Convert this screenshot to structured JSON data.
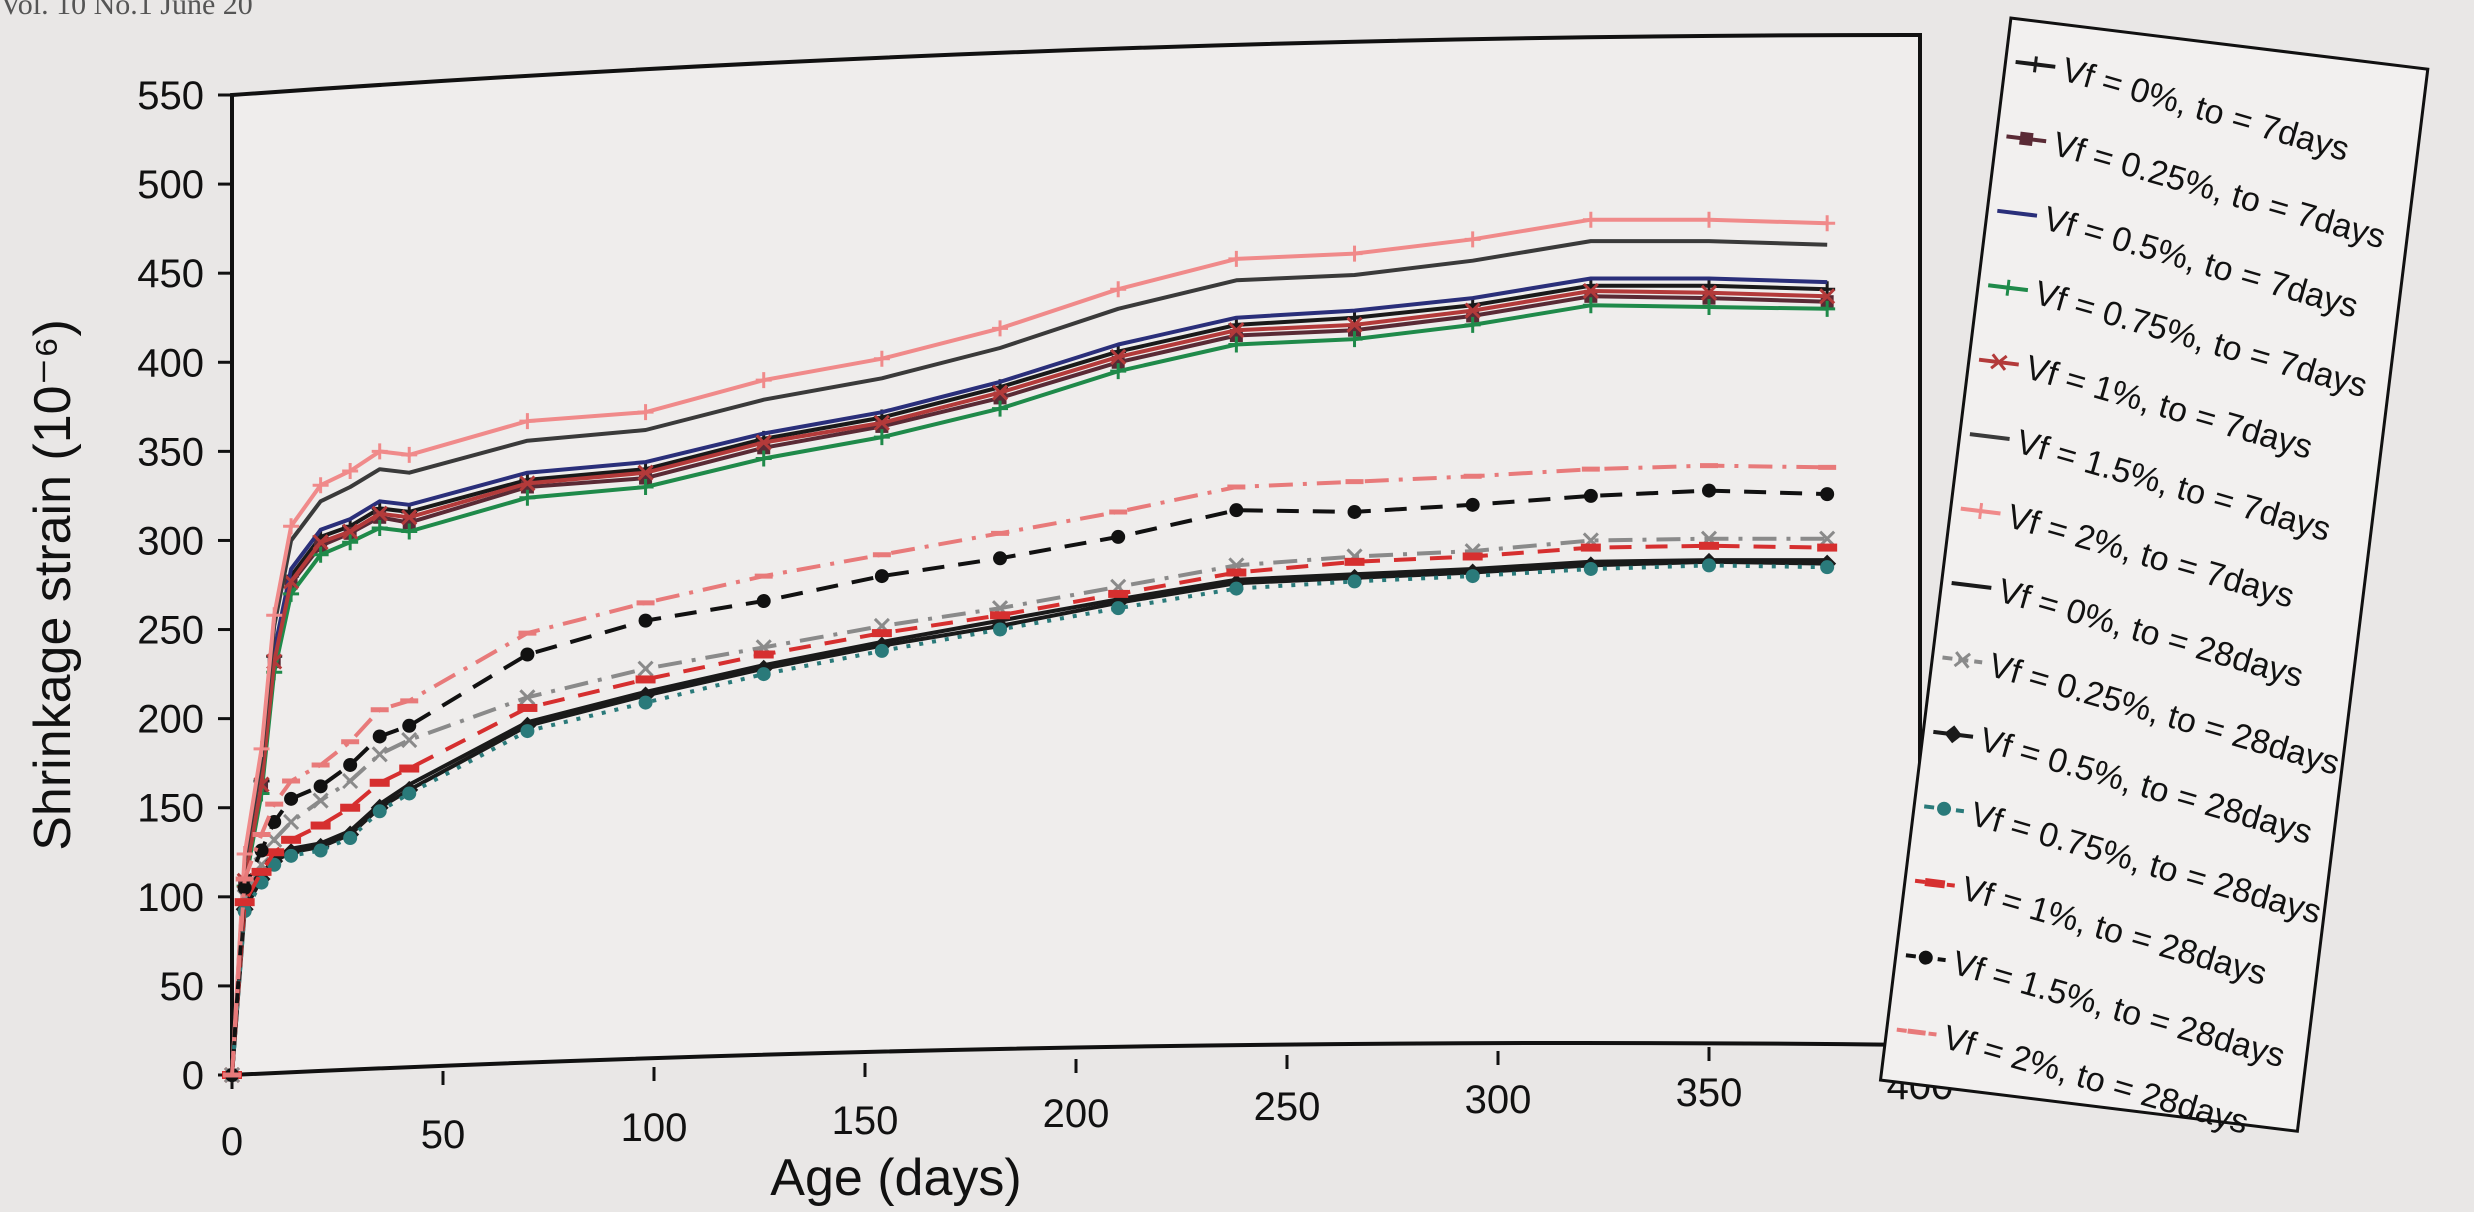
{
  "page": {
    "header_text": "Vol. 10 No.1  June 20"
  },
  "chart_data": {
    "type": "line",
    "title": "",
    "xlabel": "Age (days)",
    "ylabel": "Shrinkage strain (10⁻⁶)",
    "xlim": [
      0,
      400
    ],
    "ylim": [
      0,
      550
    ],
    "xticks": [
      0,
      50,
      100,
      150,
      200,
      250,
      300,
      350,
      400
    ],
    "yticks": [
      0,
      50,
      100,
      150,
      200,
      250,
      300,
      350,
      400,
      450,
      500,
      550
    ],
    "grid": false,
    "legend_position": "right",
    "x": [
      0,
      3,
      7,
      10,
      14,
      21,
      28,
      35,
      42,
      70,
      98,
      126,
      154,
      182,
      210,
      238,
      266,
      294,
      322,
      350,
      378
    ],
    "series": [
      {
        "name": "Vf = 0%, to = 7days",
        "color": "#1a1a1a",
        "dash": "solid",
        "marker": "plus",
        "values": [
          0,
          110,
          165,
          235,
          280,
          302,
          308,
          318,
          316,
          334,
          340,
          357,
          369,
          386,
          406,
          421,
          425,
          432,
          443,
          443,
          441
        ]
      },
      {
        "name": "Vf = 0.25%, to = 7days",
        "color": "#5a2a35",
        "dash": "solid",
        "marker": "square",
        "values": [
          0,
          108,
          162,
          232,
          276,
          297,
          304,
          313,
          310,
          330,
          335,
          352,
          364,
          380,
          400,
          415,
          418,
          426,
          437,
          436,
          434
        ]
      },
      {
        "name": "Vf = 0.5%, to = 7days",
        "color": "#2a2f7a",
        "dash": "solid",
        "marker": "none",
        "values": [
          0,
          112,
          168,
          238,
          284,
          306,
          312,
          322,
          320,
          338,
          344,
          360,
          372,
          389,
          410,
          425,
          429,
          436,
          447,
          447,
          445
        ]
      },
      {
        "name": "Vf = 0.75%, to = 7days",
        "color": "#1f8a4a",
        "dash": "solid",
        "marker": "plus",
        "values": [
          0,
          106,
          158,
          226,
          270,
          292,
          299,
          307,
          305,
          324,
          330,
          346,
          358,
          374,
          395,
          410,
          413,
          421,
          432,
          431,
          430
        ]
      },
      {
        "name": "Vf = 1%, to = 7days",
        "color": "#b33a3a",
        "dash": "solid",
        "marker": "cross",
        "values": [
          0,
          109,
          163,
          232,
          277,
          299,
          305,
          315,
          313,
          332,
          338,
          355,
          366,
          383,
          403,
          418,
          421,
          429,
          440,
          439,
          437
        ]
      },
      {
        "name": "Vf = 1.5%, to = 7days",
        "color": "#3a3a3a",
        "dash": "solid",
        "marker": "none",
        "values": [
          0,
          120,
          178,
          252,
          300,
          322,
          330,
          340,
          338,
          356,
          362,
          379,
          391,
          408,
          430,
          446,
          449,
          457,
          468,
          468,
          466
        ]
      },
      {
        "name": "Vf = 2%, to = 7days",
        "color": "#f08a8a",
        "dash": "solid",
        "marker": "plus",
        "values": [
          0,
          124,
          183,
          258,
          308,
          331,
          339,
          350,
          348,
          367,
          372,
          390,
          402,
          419,
          441,
          458,
          461,
          469,
          480,
          480,
          478
        ]
      },
      {
        "name": "Vf = 0%, to = 28days",
        "color": "#1a1a1a",
        "dash": "solid",
        "marker": "none",
        "values": [
          0,
          95,
          112,
          122,
          127,
          130,
          137,
          152,
          163,
          198,
          215,
          230,
          243,
          255,
          267,
          278,
          281,
          284,
          288,
          289,
          289
        ]
      },
      {
        "name": "Vf = 0.25%, to = 28days",
        "color": "#8a8a8a",
        "dash": "dashdot",
        "marker": "cross",
        "values": [
          0,
          100,
          118,
          132,
          142,
          154,
          165,
          180,
          188,
          212,
          228,
          240,
          252,
          262,
          274,
          286,
          291,
          294,
          300,
          301,
          301
        ]
      },
      {
        "name": "Vf = 0.5%, to = 28days",
        "color": "#1a1a1a",
        "dash": "solid",
        "marker": "diamond",
        "values": [
          0,
          93,
          110,
          120,
          125,
          128,
          135,
          150,
          160,
          196,
          213,
          228,
          241,
          252,
          265,
          276,
          279,
          282,
          286,
          288,
          287
        ]
      },
      {
        "name": "Vf = 0.75%, to = 28days",
        "color": "#2a7a7a",
        "dash": "dotted",
        "marker": "dot",
        "values": [
          0,
          92,
          108,
          118,
          123,
          126,
          133,
          148,
          158,
          193,
          209,
          225,
          238,
          250,
          262,
          273,
          277,
          280,
          284,
          286,
          285
        ]
      },
      {
        "name": "Vf = 1%, to = 28days",
        "color": "#d62f2f",
        "dash": "dashed",
        "marker": "bar",
        "values": [
          0,
          97,
          114,
          125,
          132,
          140,
          150,
          164,
          172,
          206,
          222,
          236,
          248,
          258,
          270,
          282,
          288,
          291,
          296,
          297,
          296
        ]
      },
      {
        "name": "Vf = 1.5%, to = 28days",
        "color": "#111111",
        "dash": "dashed",
        "marker": "dot",
        "values": [
          0,
          105,
          126,
          142,
          155,
          162,
          174,
          190,
          196,
          236,
          255,
          266,
          280,
          290,
          302,
          317,
          316,
          320,
          325,
          328,
          326
        ]
      },
      {
        "name": "Vf = 2%, to = 28days",
        "color": "#e87a7a",
        "dash": "dashdot",
        "marker": "dash",
        "values": [
          0,
          110,
          135,
          152,
          165,
          174,
          187,
          205,
          210,
          248,
          265,
          280,
          292,
          304,
          316,
          330,
          333,
          336,
          340,
          342,
          341
        ]
      }
    ]
  }
}
